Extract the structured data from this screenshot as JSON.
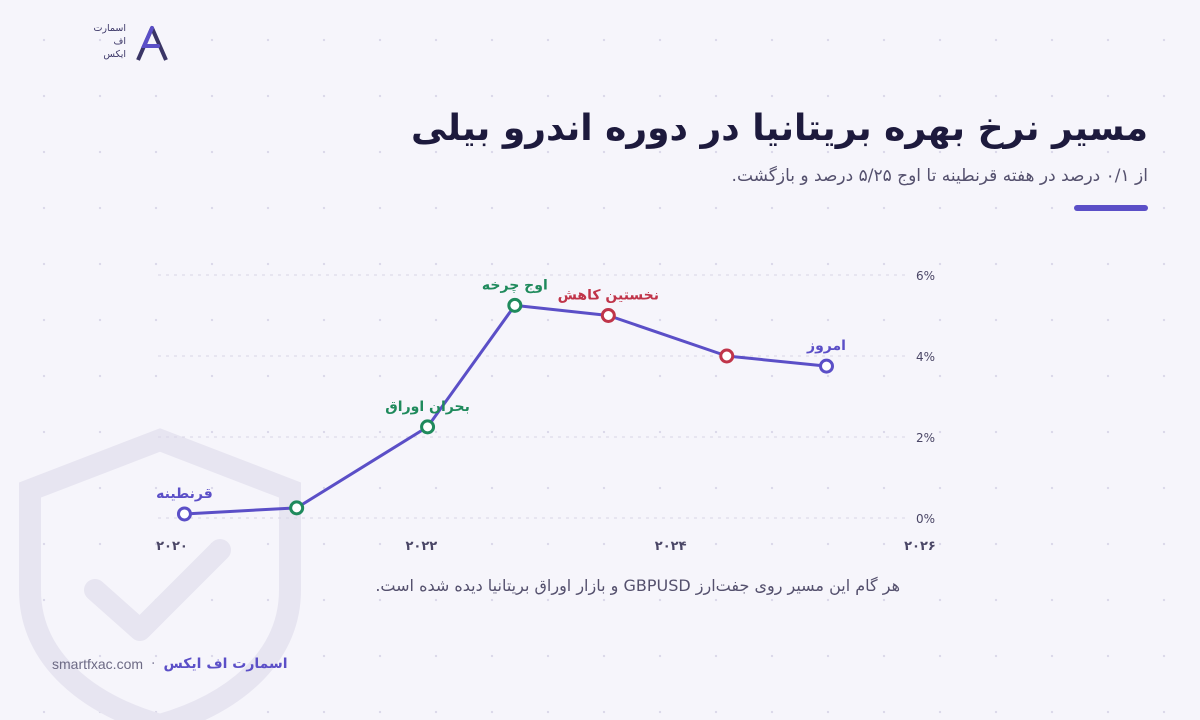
{
  "brand": {
    "logo_lines": [
      "اسمارت",
      "اف",
      "ایکس"
    ],
    "logo_icon": "fx-monogram-icon",
    "accent_color": "#5b4fc7"
  },
  "header": {
    "title": "مسیر نرخ بهره بریتانیا در دوره اندرو بیلی",
    "subtitle": "از ۰/۱ درصد در هفته قرنطینه تا اوج ۵/۲۵ درصد و بازگشت."
  },
  "chart_data": {
    "type": "line",
    "x": [
      2020.1,
      2021.0,
      2022.05,
      2022.75,
      2023.5,
      2024.45,
      2025.25
    ],
    "y": [
      0.1,
      0.25,
      2.25,
      5.25,
      5.0,
      4.0,
      3.75
    ],
    "point_colors": [
      "#5b4fc7",
      "#1f8a5c",
      "#1f8a5c",
      "#1f8a5c",
      "#c0354a",
      "#c0354a",
      "#5b4fc7"
    ],
    "annotations": [
      {
        "point": 0,
        "text": "قرنطینه",
        "color": "#5b4fc7"
      },
      {
        "point": 2,
        "text": "بحران اوراق",
        "color": "#1f8a5c"
      },
      {
        "point": 3,
        "text": "اوج چرخه",
        "color": "#1f8a5c"
      },
      {
        "point": 4,
        "text": "نخستین کاهش",
        "color": "#c0354a"
      },
      {
        "point": 6,
        "text": "امروز",
        "color": "#5b4fc7"
      }
    ],
    "x_ticks": [
      {
        "value": 2020,
        "label": "۲۰۲۰"
      },
      {
        "value": 2022,
        "label": "۲۰۲۲"
      },
      {
        "value": 2024,
        "label": "۲۰۲۴"
      },
      {
        "value": 2026,
        "label": "۲۰۲۶"
      }
    ],
    "y_ticks": [
      {
        "value": 0,
        "label": "0%"
      },
      {
        "value": 2,
        "label": "2%"
      },
      {
        "value": 4,
        "label": "4%"
      },
      {
        "value": 6,
        "label": "6%"
      }
    ],
    "xlim": [
      2020,
      2026
    ],
    "ylim": [
      0,
      6
    ],
    "y_axis_side": "right",
    "grid": "horizontal-dashed",
    "line_color": "#5b4fc7"
  },
  "caption": "هر گام این مسیر روی جفت‌ارز GBPUSD و بازار اوراق بریتانیا دیده شده است.",
  "footer": {
    "url": "smartfxac.com",
    "separator": "·",
    "brand_name": "اسمارت اف ایکس"
  }
}
